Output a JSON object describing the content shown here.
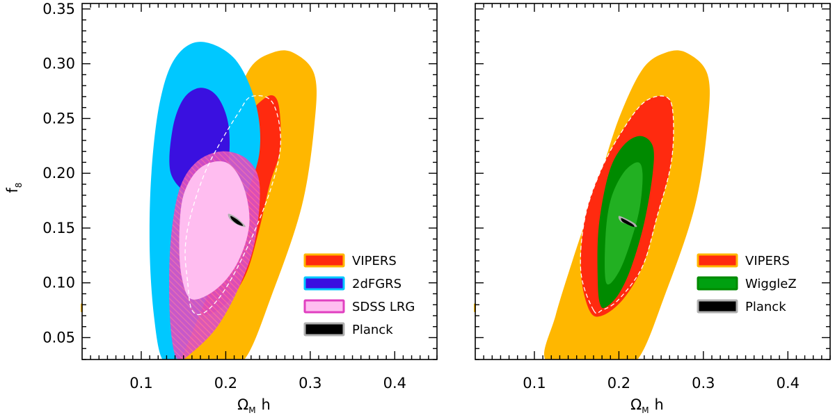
{
  "chart_data": [
    {
      "type": "contour",
      "panel": "left",
      "xlabel": "Ωₘ h",
      "xlabel_main": "Ω",
      "xlabel_sub": "M",
      "xlabel_tail": "h",
      "ylabel_main": "f",
      "ylabel_sub": "8",
      "xlim": [
        0.03,
        0.45
      ],
      "ylim": [
        0.03,
        0.355
      ],
      "x_ticks": [
        "0.1",
        "0.2",
        "0.3",
        "0.4"
      ],
      "y_ticks": [
        "0.05",
        "0.10",
        "0.15",
        "0.20",
        "0.25",
        "0.30",
        "0.35"
      ],
      "legend_position": "bottom-right",
      "legend": [
        {
          "label": "VIPERS",
          "fill": "#ff2a0f",
          "edge": "#ffb700"
        },
        {
          "label": "2dFGRS",
          "fill": "#3a10e0",
          "edge": "#00c8ff"
        },
        {
          "label": "SDSS LRG",
          "fill": "#ffbdf0",
          "edge": "#e040c0"
        },
        {
          "label": "Planck",
          "fill": "#000000",
          "edge": "#b0b0b0"
        }
      ],
      "contours": [
        {
          "name": "VIPERS",
          "level": "2σ",
          "color": "#ffb700",
          "points": [
            [
              0.135,
              0.03
            ],
            [
              0.16,
              0.03
            ],
            [
              0.19,
              0.03
            ],
            [
              0.222,
              0.03
            ],
            [
              0.255,
              0.09
            ],
            [
              0.29,
              0.17
            ],
            [
              0.305,
              0.245
            ],
            [
              0.305,
              0.29
            ],
            [
              0.28,
              0.31
            ],
            [
              0.255,
              0.31
            ],
            [
              0.228,
              0.295
            ],
            [
              0.205,
              0.25
            ],
            [
              0.187,
              0.2
            ],
            [
              0.165,
              0.14
            ],
            [
              0.145,
              0.08
            ]
          ]
        },
        {
          "name": "VIPERS",
          "level": "1σ",
          "color": "#ff2a0f",
          "points": [
            [
              0.168,
              0.075
            ],
            [
              0.172,
              0.11
            ],
            [
              0.185,
              0.16
            ],
            [
              0.205,
              0.21
            ],
            [
              0.225,
              0.25
            ],
            [
              0.245,
              0.268
            ],
            [
              0.258,
              0.27
            ],
            [
              0.264,
              0.255
            ],
            [
              0.264,
              0.22
            ],
            [
              0.252,
              0.19
            ],
            [
              0.24,
              0.15
            ],
            [
              0.225,
              0.11
            ],
            [
              0.205,
              0.085
            ],
            [
              0.183,
              0.072
            ]
          ]
        },
        {
          "name": "2dFGRS",
          "level": "2σ",
          "color": "#00c8ff",
          "points": [
            [
              0.125,
              0.03
            ],
            [
              0.145,
              0.03
            ],
            [
              0.163,
              0.06
            ],
            [
              0.195,
              0.12
            ],
            [
              0.222,
              0.175
            ],
            [
              0.24,
              0.22
            ],
            [
              0.235,
              0.265
            ],
            [
              0.21,
              0.305
            ],
            [
              0.17,
              0.32
            ],
            [
              0.14,
              0.305
            ],
            [
              0.122,
              0.265
            ],
            [
              0.112,
              0.2
            ],
            [
              0.11,
              0.13
            ],
            [
              0.115,
              0.07
            ]
          ]
        },
        {
          "name": "2dFGRS",
          "level": "1σ",
          "color": "#3a10e0",
          "points": [
            [
              0.135,
              0.2
            ],
            [
              0.137,
              0.24
            ],
            [
              0.15,
              0.268
            ],
            [
              0.17,
              0.278
            ],
            [
              0.19,
              0.27
            ],
            [
              0.203,
              0.245
            ],
            [
              0.203,
              0.21
            ],
            [
              0.19,
              0.185
            ],
            [
              0.16,
              0.18
            ]
          ]
        },
        {
          "name": "SDSS LRG",
          "level": "2σ",
          "color": "#d850c4",
          "points": [
            [
              0.143,
              0.03
            ],
            [
              0.158,
              0.035
            ],
            [
              0.19,
              0.06
            ],
            [
              0.218,
              0.1
            ],
            [
              0.235,
              0.14
            ],
            [
              0.24,
              0.19
            ],
            [
              0.225,
              0.213
            ],
            [
              0.195,
              0.22
            ],
            [
              0.165,
              0.21
            ],
            [
              0.145,
              0.185
            ],
            [
              0.135,
              0.14
            ],
            [
              0.133,
              0.09
            ],
            [
              0.136,
              0.05
            ]
          ]
        },
        {
          "name": "SDSS LRG",
          "level": "1σ",
          "color": "#ffbdf0",
          "points": [
            [
              0.16,
              0.085
            ],
            [
              0.19,
              0.095
            ],
            [
              0.215,
              0.12
            ],
            [
              0.228,
              0.155
            ],
            [
              0.22,
              0.19
            ],
            [
              0.2,
              0.21
            ],
            [
              0.17,
              0.205
            ],
            [
              0.15,
              0.18
            ],
            [
              0.145,
              0.14
            ],
            [
              0.148,
              0.105
            ]
          ]
        },
        {
          "name": "Planck",
          "level": "2σ",
          "color": "#b0b0b0",
          "points": [
            [
              0.203,
              0.163
            ],
            [
              0.212,
              0.16
            ],
            [
              0.221,
              0.154
            ],
            [
              0.223,
              0.151
            ],
            [
              0.214,
              0.153
            ],
            [
              0.205,
              0.158
            ]
          ]
        },
        {
          "name": "Planck",
          "level": "1σ",
          "color": "#000000",
          "points": [
            [
              0.206,
              0.161
            ],
            [
              0.213,
              0.158
            ],
            [
              0.219,
              0.154
            ],
            [
              0.22,
              0.152
            ],
            [
              0.213,
              0.154
            ],
            [
              0.207,
              0.158
            ]
          ]
        },
        {
          "name": "dashed",
          "level": "1σ",
          "color": "#ffffff",
          "points": [
            [
              0.155,
              0.1
            ],
            [
              0.16,
              0.075
            ],
            [
              0.175,
              0.073
            ],
            [
              0.2,
              0.095
            ],
            [
              0.23,
              0.14
            ],
            [
              0.255,
              0.19
            ],
            [
              0.265,
              0.23
            ],
            [
              0.255,
              0.265
            ],
            [
              0.23,
              0.27
            ],
            [
              0.215,
              0.255
            ],
            [
              0.195,
              0.23
            ],
            [
              0.175,
              0.2
            ],
            [
              0.158,
              0.16
            ],
            [
              0.152,
              0.13
            ]
          ]
        }
      ],
      "planck_center": [
        0.212,
        0.157
      ]
    },
    {
      "type": "contour",
      "panel": "right",
      "xlabel": "Ωₘ h",
      "xlabel_main": "Ω",
      "xlabel_sub": "M",
      "xlabel_tail": "h",
      "xlim": [
        0.03,
        0.45
      ],
      "ylim": [
        0.03,
        0.355
      ],
      "x_ticks": [
        "0.1",
        "0.2",
        "0.3",
        "0.4"
      ],
      "legend_position": "bottom-right",
      "legend": [
        {
          "label": "VIPERS",
          "fill": "#ff2a0f",
          "edge": "#ffb700"
        },
        {
          "label": "WiggleZ",
          "fill": "#00a010",
          "edge": "#008a00"
        },
        {
          "label": "Planck",
          "fill": "#000000",
          "edge": "#b0b0b0"
        }
      ],
      "contours": [
        {
          "name": "VIPERS",
          "level": "2σ",
          "color": "#ffb700",
          "points": [
            [
              0.113,
              0.03
            ],
            [
              0.16,
              0.03
            ],
            [
              0.19,
              0.03
            ],
            [
              0.222,
              0.03
            ],
            [
              0.255,
              0.09
            ],
            [
              0.29,
              0.17
            ],
            [
              0.305,
              0.245
            ],
            [
              0.305,
              0.29
            ],
            [
              0.28,
              0.31
            ],
            [
              0.255,
              0.31
            ],
            [
              0.228,
              0.295
            ],
            [
              0.2,
              0.25
            ],
            [
              0.175,
              0.19
            ],
            [
              0.145,
              0.12
            ],
            [
              0.125,
              0.07
            ]
          ]
        },
        {
          "name": "VIPERS",
          "level": "1σ",
          "color": "#ff2a0f",
          "points": [
            [
              0.165,
              0.075
            ],
            [
              0.155,
              0.11
            ],
            [
              0.16,
              0.16
            ],
            [
              0.18,
              0.205
            ],
            [
              0.205,
              0.24
            ],
            [
              0.23,
              0.265
            ],
            [
              0.255,
              0.27
            ],
            [
              0.264,
              0.255
            ],
            [
              0.262,
              0.21
            ],
            [
              0.245,
              0.16
            ],
            [
              0.228,
              0.115
            ],
            [
              0.205,
              0.085
            ],
            [
              0.18,
              0.07
            ]
          ]
        },
        {
          "name": "WiggleZ",
          "level": "2σ",
          "color": "#008a00",
          "points": [
            [
              0.178,
              0.08
            ],
            [
              0.175,
              0.1
            ],
            [
              0.176,
              0.15
            ],
            [
              0.188,
              0.2
            ],
            [
              0.205,
              0.225
            ],
            [
              0.225,
              0.234
            ],
            [
              0.24,
              0.225
            ],
            [
              0.24,
              0.2
            ],
            [
              0.23,
              0.155
            ],
            [
              0.215,
              0.115
            ],
            [
              0.2,
              0.09
            ],
            [
              0.185,
              0.078
            ]
          ]
        },
        {
          "name": "WiggleZ",
          "level": "1σ",
          "color": "#22b022",
          "points": [
            [
              0.185,
              0.1
            ],
            [
              0.184,
              0.14
            ],
            [
              0.19,
              0.175
            ],
            [
              0.205,
              0.2
            ],
            [
              0.222,
              0.21
            ],
            [
              0.228,
              0.2
            ],
            [
              0.225,
              0.17
            ],
            [
              0.215,
              0.14
            ],
            [
              0.2,
              0.11
            ]
          ]
        },
        {
          "name": "Planck",
          "level": "2σ",
          "color": "#b0b0b0",
          "points": [
            [
              0.2,
              0.161
            ],
            [
              0.21,
              0.158
            ],
            [
              0.219,
              0.154
            ],
            [
              0.221,
              0.151
            ],
            [
              0.212,
              0.153
            ],
            [
              0.202,
              0.156
            ]
          ]
        },
        {
          "name": "Planck",
          "level": "1σ",
          "color": "#000000",
          "points": [
            [
              0.203,
              0.159
            ],
            [
              0.211,
              0.156
            ],
            [
              0.217,
              0.153
            ],
            [
              0.218,
              0.151
            ],
            [
              0.211,
              0.153
            ],
            [
              0.204,
              0.156
            ]
          ]
        },
        {
          "name": "dashed",
          "level": "1σ",
          "color": "#ffffff",
          "points": [
            [
              0.17,
              0.075
            ],
            [
              0.155,
              0.11
            ],
            [
              0.16,
              0.16
            ],
            [
              0.18,
              0.205
            ],
            [
              0.205,
              0.24
            ],
            [
              0.23,
              0.265
            ],
            [
              0.255,
              0.27
            ],
            [
              0.264,
              0.255
            ],
            [
              0.262,
              0.21
            ],
            [
              0.245,
              0.16
            ],
            [
              0.228,
              0.115
            ],
            [
              0.2,
              0.085
            ],
            [
              0.18,
              0.075
            ]
          ]
        }
      ],
      "planck_center": [
        0.21,
        0.155
      ]
    }
  ]
}
